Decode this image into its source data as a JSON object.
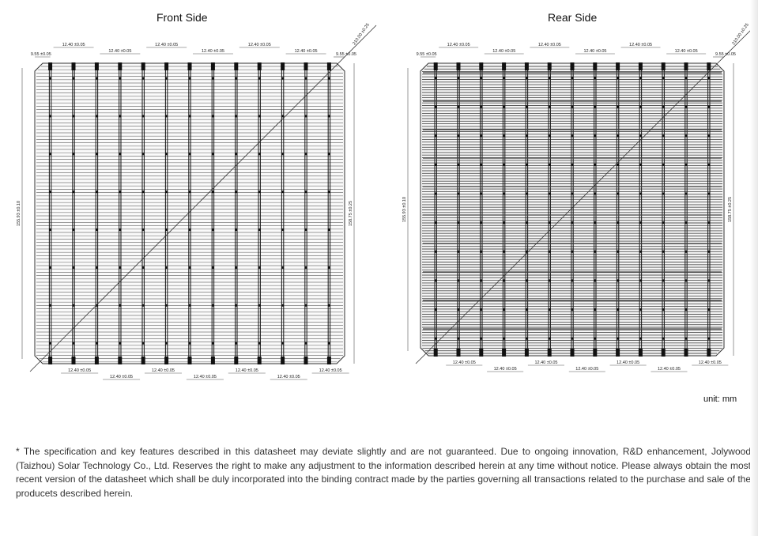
{
  "front": {
    "title": "Front Side",
    "top_dims": [
      "9.55 ±0.05",
      "12.40 ±0.05",
      "12.40 ±0.05",
      "12.40 ±0.05",
      "12.40 ±0.05",
      "12.40 ±0.05",
      "12.40 ±0.05",
      "9.55 ±0.05"
    ],
    "diag_dim": "210.00 ±0.25",
    "height_left": "155.93 ±0.10",
    "height_right": "158.75 ±0.25",
    "bottom_dims": [
      "12.40 ±0.05",
      "12.40 ±0.05",
      "12.40 ±0.05",
      "12.40 ±0.05",
      "12.40 ±0.05",
      "12.40 ±0.05",
      "12.40 ±0.05"
    ]
  },
  "rear": {
    "title": "Rear Side",
    "top_dims": [
      "9.55 ±0.05",
      "12.40 ±0.05",
      "12.40 ±0.05",
      "12.40 ±0.05",
      "12.40 ±0.05",
      "12.40 ±0.05",
      "12.40 ±0.05",
      "9.55 ±0.05"
    ],
    "diag_dim": "210.00 ±0.25",
    "height_left": "155.93 ±0.10",
    "height_right": "158.75 ±0.25",
    "bottom_dims": [
      "12.40 ±0.05",
      "12.40 ±0.05",
      "12.40 ±0.05",
      "12.40 ±0.05",
      "12.40 ±0.05",
      "12.40 ±0.05",
      "12.40 ±0.05"
    ]
  },
  "unit_label": "unit: mm",
  "disclaimer": "* The specification and key features described in this datasheet may deviate slightly and are not guaranteed. Due to ongoing innovation, R&D enhancement, Jolywood (Taizhou) Solar Technology Co., Ltd. Reserves the right to make any adjustment to the information described herein at any time without notice. Please always obtain the most recent version of the datasheet which shall be duly incorporated into the binding contract made by the parties governing all transactions related to the purchase and sale of the producets described herein."
}
